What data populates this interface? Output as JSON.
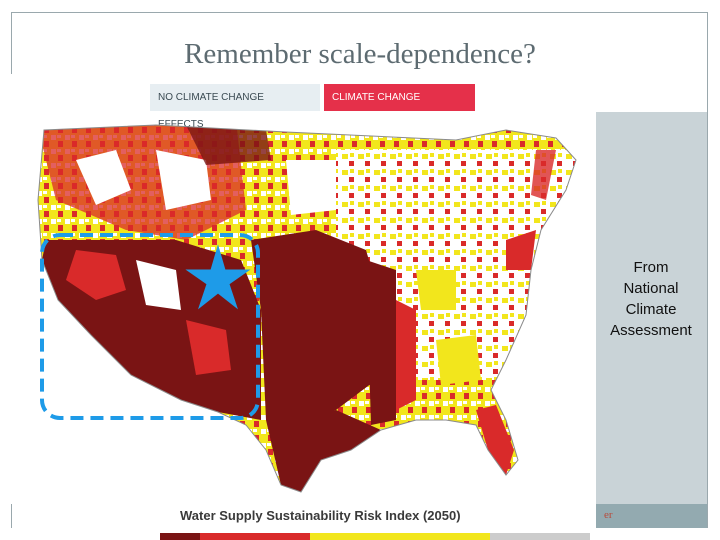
{
  "slide": {
    "title": "Remember scale-dependence?",
    "attribution_lines": [
      "From",
      "National",
      "Climate",
      "Assessment"
    ],
    "footer_text": "er"
  },
  "toggle": {
    "no_effects_label": "NO CLIMATE CHANGE EFFECTS",
    "effects_label": "CLIMATE CHANGE EFFECTS",
    "active": "effects"
  },
  "map": {
    "legend_title": "Water Supply Sustainability Risk Index (2050)",
    "marker_icon": "star-icon",
    "colors": {
      "very_high": "#7a1414",
      "high": "#d92a2a",
      "moderate": "#f2e61c",
      "low": "#ffffff",
      "highlight": "#1e9be8"
    },
    "legend_strip_colors": [
      "#7a1414",
      "#d92a2a",
      "#f2e61c",
      "#cccccc"
    ]
  }
}
